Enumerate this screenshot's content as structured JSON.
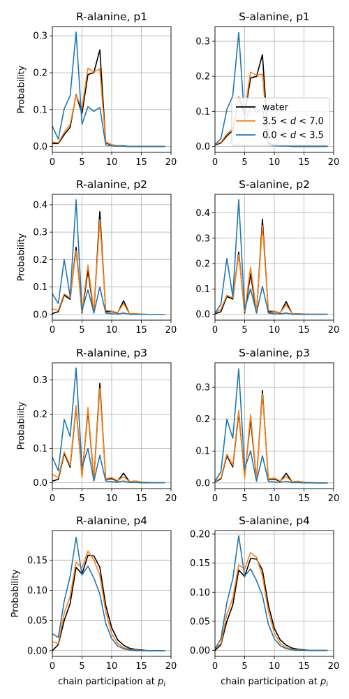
{
  "chart_data": [
    {
      "type": "line",
      "title": "R-alanine, p1",
      "xlabel": "",
      "ylabel": "Probability",
      "xlim": [
        0,
        20
      ],
      "ylim": [
        -0.016,
        0.325
      ],
      "xticks": [
        0,
        5,
        10,
        15,
        20
      ],
      "yticks": [
        0.0,
        0.1,
        0.2,
        0.3
      ],
      "grid": true,
      "x": [
        0,
        1,
        2,
        3,
        4,
        5,
        6,
        7,
        8,
        9,
        10,
        11,
        12,
        13,
        14,
        15,
        16,
        17,
        18,
        19
      ],
      "series": [
        {
          "name": "water",
          "color": "#000000",
          "values": [
            0.008,
            0.008,
            0.032,
            0.052,
            0.14,
            0.09,
            0.195,
            0.2,
            0.262,
            0.01,
            0.004,
            0.002,
            0.002,
            0,
            0,
            0,
            0,
            0,
            0,
            0
          ]
        },
        {
          "name": "3.5 < d < 7.0",
          "color": "#ff7f0e",
          "values": [
            0.012,
            0.01,
            0.038,
            0.06,
            0.138,
            0.105,
            0.212,
            0.202,
            0.21,
            0.012,
            0.005,
            0.002,
            0.001,
            0,
            0,
            0,
            0,
            0,
            0,
            0
          ]
        },
        {
          "name": "0.0 < d < 3.5",
          "color": "#1f77b4",
          "values": [
            0.055,
            0.02,
            0.102,
            0.138,
            0.31,
            0.06,
            0.108,
            0.095,
            0.106,
            0.004,
            0.002,
            0.001,
            0.001,
            0,
            0,
            0,
            0,
            0,
            0,
            0
          ]
        }
      ]
    },
    {
      "type": "line",
      "title": "S-alanine, p1",
      "xlabel": "",
      "ylabel": "",
      "xlim": [
        0,
        20
      ],
      "ylim": [
        -0.017,
        0.342
      ],
      "xticks": [
        0,
        5,
        10,
        15,
        20
      ],
      "yticks": [
        0.0,
        0.1,
        0.2,
        0.3
      ],
      "grid": true,
      "legend": "right",
      "x": [
        0,
        1,
        2,
        3,
        4,
        5,
        6,
        7,
        8,
        9,
        10,
        11,
        12,
        13,
        14,
        15,
        16,
        17,
        18,
        19
      ],
      "series": [
        {
          "name": "water",
          "color": "#000000",
          "values": [
            0.004,
            0.01,
            0.03,
            0.045,
            0.14,
            0.09,
            0.195,
            0.2,
            0.262,
            0.01,
            0.004,
            0.002,
            0.002,
            0,
            0,
            0,
            0,
            0,
            0,
            0
          ]
        },
        {
          "name": "3.5 < d < 7.0",
          "color": "#ff7f0e",
          "values": [
            0.006,
            0.012,
            0.035,
            0.05,
            0.142,
            0.1,
            0.212,
            0.204,
            0.206,
            0.012,
            0.005,
            0.002,
            0.001,
            0,
            0,
            0,
            0,
            0,
            0,
            0
          ]
        },
        {
          "name": "0.0 < d < 3.5",
          "color": "#1f77b4",
          "values": [
            0.006,
            0.022,
            0.105,
            0.145,
            0.325,
            0.07,
            0.115,
            0.098,
            0.11,
            0.004,
            0.002,
            0.001,
            0.001,
            0,
            0,
            0,
            0,
            0,
            0,
            0
          ]
        }
      ]
    },
    {
      "type": "line",
      "title": "R-alanine, p2",
      "xlabel": "",
      "ylabel": "Probability",
      "xlim": [
        0,
        20
      ],
      "ylim": [
        -0.021,
        0.438
      ],
      "xticks": [
        0,
        5,
        10,
        15,
        20
      ],
      "yticks": [
        0.0,
        0.1,
        0.2,
        0.3,
        0.4
      ],
      "grid": true,
      "x": [
        0,
        1,
        2,
        3,
        4,
        5,
        6,
        7,
        8,
        9,
        10,
        11,
        12,
        13,
        14,
        15,
        16,
        17,
        18,
        19
      ],
      "series": [
        {
          "name": "water",
          "color": "#000000",
          "values": [
            0.003,
            0.01,
            0.07,
            0.055,
            0.245,
            0.005,
            0.16,
            0.005,
            0.375,
            0.01,
            0.01,
            0.005,
            0.05,
            0.002,
            0.002,
            0.001,
            0,
            0,
            0,
            0
          ]
        },
        {
          "name": "3.5 < d < 7.0",
          "color": "#ff7f0e",
          "values": [
            0.02,
            0.015,
            0.075,
            0.06,
            0.232,
            0.01,
            0.18,
            0.01,
            0.345,
            0.015,
            0.012,
            0.006,
            0.04,
            0.002,
            0.002,
            0.001,
            0,
            0,
            0,
            0
          ]
        },
        {
          "name": "0.0 < d < 3.5",
          "color": "#1f77b4",
          "values": [
            0.075,
            0.04,
            0.2,
            0.065,
            0.418,
            0.015,
            0.09,
            0.005,
            0.1,
            0.005,
            0.002,
            0.001,
            0.005,
            0,
            0,
            0,
            0,
            0,
            0,
            0
          ]
        }
      ]
    },
    {
      "type": "line",
      "title": "S-alanine, p2",
      "xlabel": "",
      "ylabel": "",
      "xlim": [
        0,
        20
      ],
      "ylim": [
        -0.023,
        0.473
      ],
      "xticks": [
        0,
        5,
        10,
        15,
        20
      ],
      "yticks": [
        0.0,
        0.1,
        0.2,
        0.3,
        0.4
      ],
      "grid": true,
      "x": [
        0,
        1,
        2,
        3,
        4,
        5,
        6,
        7,
        8,
        9,
        10,
        11,
        12,
        13,
        14,
        15,
        16,
        17,
        18,
        19
      ],
      "series": [
        {
          "name": "water",
          "color": "#000000",
          "values": [
            0.002,
            0.01,
            0.07,
            0.06,
            0.245,
            0.005,
            0.16,
            0.005,
            0.375,
            0.01,
            0.01,
            0.005,
            0.05,
            0.002,
            0.002,
            0.001,
            0,
            0,
            0,
            0
          ]
        },
        {
          "name": "3.5 < d < 7.0",
          "color": "#ff7f0e",
          "values": [
            0.005,
            0.02,
            0.075,
            0.065,
            0.235,
            0.01,
            0.185,
            0.01,
            0.35,
            0.015,
            0.012,
            0.006,
            0.038,
            0.002,
            0.002,
            0.001,
            0,
            0,
            0,
            0
          ]
        },
        {
          "name": "0.0 < d < 3.5",
          "color": "#1f77b4",
          "values": [
            0.005,
            0.04,
            0.22,
            0.07,
            0.452,
            0.02,
            0.1,
            0.005,
            0.11,
            0.005,
            0.002,
            0.001,
            0.005,
            0,
            0,
            0,
            0,
            0,
            0,
            0
          ]
        }
      ]
    },
    {
      "type": "line",
      "title": "R-alanine, p3",
      "xlabel": "",
      "ylabel": "Probability",
      "xlim": [
        0,
        20
      ],
      "ylim": [
        -0.017,
        0.35
      ],
      "xticks": [
        0,
        5,
        10,
        15,
        20
      ],
      "yticks": [
        0.0,
        0.1,
        0.2,
        0.3
      ],
      "grid": true,
      "x": [
        0,
        1,
        2,
        3,
        4,
        5,
        6,
        7,
        8,
        9,
        10,
        11,
        12,
        13,
        14,
        15,
        16,
        17,
        18,
        19
      ],
      "series": [
        {
          "name": "water",
          "color": "#000000",
          "values": [
            0.005,
            0.01,
            0.085,
            0.045,
            0.22,
            0.02,
            0.21,
            0.01,
            0.29,
            0.01,
            0.012,
            0.005,
            0.028,
            0.003,
            0.005,
            0.002,
            0.001,
            0,
            0,
            0
          ]
        },
        {
          "name": "3.5 < d < 7.0",
          "color": "#ff7f0e",
          "values": [
            0.025,
            0.015,
            0.09,
            0.05,
            0.225,
            0.015,
            0.22,
            0.01,
            0.275,
            0.012,
            0.015,
            0.006,
            0.018,
            0.003,
            0.005,
            0.002,
            0.001,
            0,
            0,
            0
          ]
        },
        {
          "name": "0.0 < d < 3.5",
          "color": "#1f77b4",
          "values": [
            0.075,
            0.035,
            0.185,
            0.135,
            0.335,
            0.045,
            0.1,
            0.005,
            0.08,
            0.005,
            0.003,
            0.002,
            0.005,
            0.001,
            0.001,
            0,
            0,
            0,
            0,
            0
          ]
        }
      ]
    },
    {
      "type": "line",
      "title": "S-alanine, p3",
      "xlabel": "",
      "ylabel": "",
      "xlim": [
        0,
        20
      ],
      "ylim": [
        -0.018,
        0.377
      ],
      "xticks": [
        0,
        5,
        10,
        15,
        20
      ],
      "yticks": [
        0.0,
        0.1,
        0.2,
        0.3
      ],
      "grid": true,
      "x": [
        0,
        1,
        2,
        3,
        4,
        5,
        6,
        7,
        8,
        9,
        10,
        11,
        12,
        13,
        14,
        15,
        16,
        17,
        18,
        19
      ],
      "series": [
        {
          "name": "water",
          "color": "#000000",
          "values": [
            0.003,
            0.012,
            0.085,
            0.05,
            0.22,
            0.02,
            0.2,
            0.01,
            0.29,
            0.01,
            0.012,
            0.005,
            0.03,
            0.003,
            0.005,
            0.002,
            0.001,
            0,
            0,
            0
          ]
        },
        {
          "name": "3.5 < d < 7.0",
          "color": "#ff7f0e",
          "values": [
            0.004,
            0.015,
            0.09,
            0.055,
            0.228,
            0.015,
            0.215,
            0.01,
            0.28,
            0.012,
            0.015,
            0.006,
            0.02,
            0.003,
            0.005,
            0.002,
            0.001,
            0,
            0,
            0
          ]
        },
        {
          "name": "0.0 < d < 3.5",
          "color": "#1f77b4",
          "values": [
            0.005,
            0.035,
            0.2,
            0.14,
            0.358,
            0.045,
            0.1,
            0.005,
            0.085,
            0.005,
            0.003,
            0.002,
            0.005,
            0.001,
            0.001,
            0,
            0,
            0,
            0,
            0
          ]
        }
      ]
    },
    {
      "type": "line",
      "title": "R-alanine, p4",
      "xlabel": "chain participation at p_i",
      "ylabel": "Probability",
      "xlim": [
        0,
        20
      ],
      "ylim": [
        -0.0095,
        0.199
      ],
      "xticks": [
        0,
        5,
        10,
        15,
        20
      ],
      "yticks": [
        0.0,
        0.05,
        0.1,
        0.15
      ],
      "grid": true,
      "x": [
        0,
        1,
        2,
        3,
        4,
        5,
        6,
        7,
        8,
        9,
        10,
        11,
        12,
        13,
        14,
        15,
        16,
        17,
        18,
        19
      ],
      "series": [
        {
          "name": "water",
          "color": "#000000",
          "values": [
            0.0,
            0.01,
            0.05,
            0.078,
            0.138,
            0.127,
            0.158,
            0.157,
            0.138,
            0.075,
            0.038,
            0.018,
            0.009,
            0.004,
            0.002,
            0.001,
            0,
            0,
            0,
            0
          ]
        },
        {
          "name": "3.5 < d < 7.0",
          "color": "#ff7f0e",
          "values": [
            0.015,
            0.012,
            0.062,
            0.09,
            0.147,
            0.137,
            0.165,
            0.15,
            0.125,
            0.065,
            0.028,
            0.012,
            0.005,
            0.002,
            0.001,
            0,
            0,
            0,
            0,
            0
          ]
        },
        {
          "name": "0.0 < d < 3.5",
          "color": "#1f77b4",
          "values": [
            0.028,
            0.022,
            0.082,
            0.123,
            0.188,
            0.125,
            0.14,
            0.12,
            0.094,
            0.045,
            0.02,
            0.008,
            0.003,
            0.001,
            0,
            0,
            0,
            0,
            0,
            0
          ]
        }
      ]
    },
    {
      "type": "line",
      "title": "S-alanine, p4",
      "xlabel": "chain participation at p_i",
      "ylabel": "",
      "xlim": [
        0,
        20
      ],
      "ylim": [
        -0.0102,
        0.206
      ],
      "xticks": [
        0,
        5,
        10,
        15,
        20
      ],
      "yticks": [
        0.0,
        0.05,
        0.1,
        0.15,
        0.2
      ],
      "grid": true,
      "x": [
        0,
        1,
        2,
        3,
        4,
        5,
        6,
        7,
        8,
        9,
        10,
        11,
        12,
        13,
        14,
        15,
        16,
        17,
        18,
        19
      ],
      "series": [
        {
          "name": "water",
          "color": "#000000",
          "values": [
            0.0,
            0.01,
            0.05,
            0.078,
            0.138,
            0.127,
            0.158,
            0.157,
            0.138,
            0.078,
            0.038,
            0.018,
            0.009,
            0.004,
            0.002,
            0.001,
            0,
            0,
            0,
            0
          ]
        },
        {
          "name": "3.5 < d < 7.0",
          "color": "#ff7f0e",
          "values": [
            0.003,
            0.012,
            0.062,
            0.09,
            0.147,
            0.14,
            0.168,
            0.16,
            0.128,
            0.068,
            0.03,
            0.012,
            0.005,
            0.002,
            0.001,
            0,
            0,
            0,
            0,
            0
          ]
        },
        {
          "name": "0.0 < d < 3.5",
          "color": "#1f77b4",
          "values": [
            0.003,
            0.02,
            0.082,
            0.123,
            0.197,
            0.128,
            0.14,
            0.12,
            0.094,
            0.045,
            0.02,
            0.008,
            0.003,
            0.001,
            0,
            0,
            0,
            0,
            0,
            0
          ]
        }
      ]
    }
  ],
  "legend": {
    "items": [
      {
        "label": "water",
        "color": "#000000"
      },
      {
        "label": "3.5 < d < 7.0",
        "color": "#ff7f0e"
      },
      {
        "label": "0.0 < d < 3.5",
        "color": "#1f77b4"
      }
    ]
  }
}
